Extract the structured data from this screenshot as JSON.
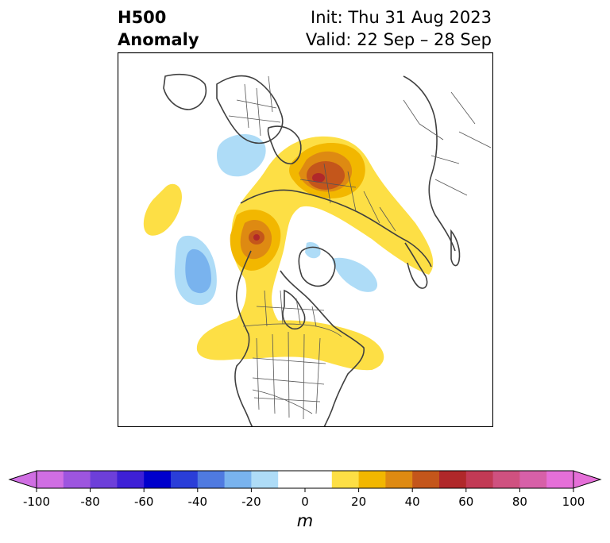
{
  "title": {
    "left_line1": "H500",
    "left_line2": "Anomaly",
    "right_line1": "Init: Thu 31 Aug 2023",
    "right_line2": "Valid: 22 Sep – 28 Sep"
  },
  "colorbar": {
    "unit": "m",
    "ticks": [
      "-100",
      "-80",
      "-60",
      "-40",
      "-20",
      "0",
      "20",
      "40",
      "60",
      "80",
      "100"
    ],
    "levels": [
      -100,
      -90,
      -80,
      -70,
      -60,
      -50,
      -40,
      -30,
      -20,
      -10,
      10,
      20,
      30,
      40,
      50,
      60,
      70,
      80,
      90,
      100
    ],
    "colors": [
      "#d06ee3",
      "#9d55df",
      "#6d3fd9",
      "#3e20d6",
      "#0000cc",
      "#2a3ed8",
      "#4f7ae0",
      "#79b3ee",
      "#aedcf7",
      "#ffffff",
      "#fddf45",
      "#f2b700",
      "#de8a12",
      "#c4561b",
      "#b0282a",
      "#c23a55",
      "#cf5180",
      "#d760a8",
      "#e56fd8"
    ],
    "extend_low_color": "#d06ee3",
    "extend_high_color": "#e56fd8"
  }
}
